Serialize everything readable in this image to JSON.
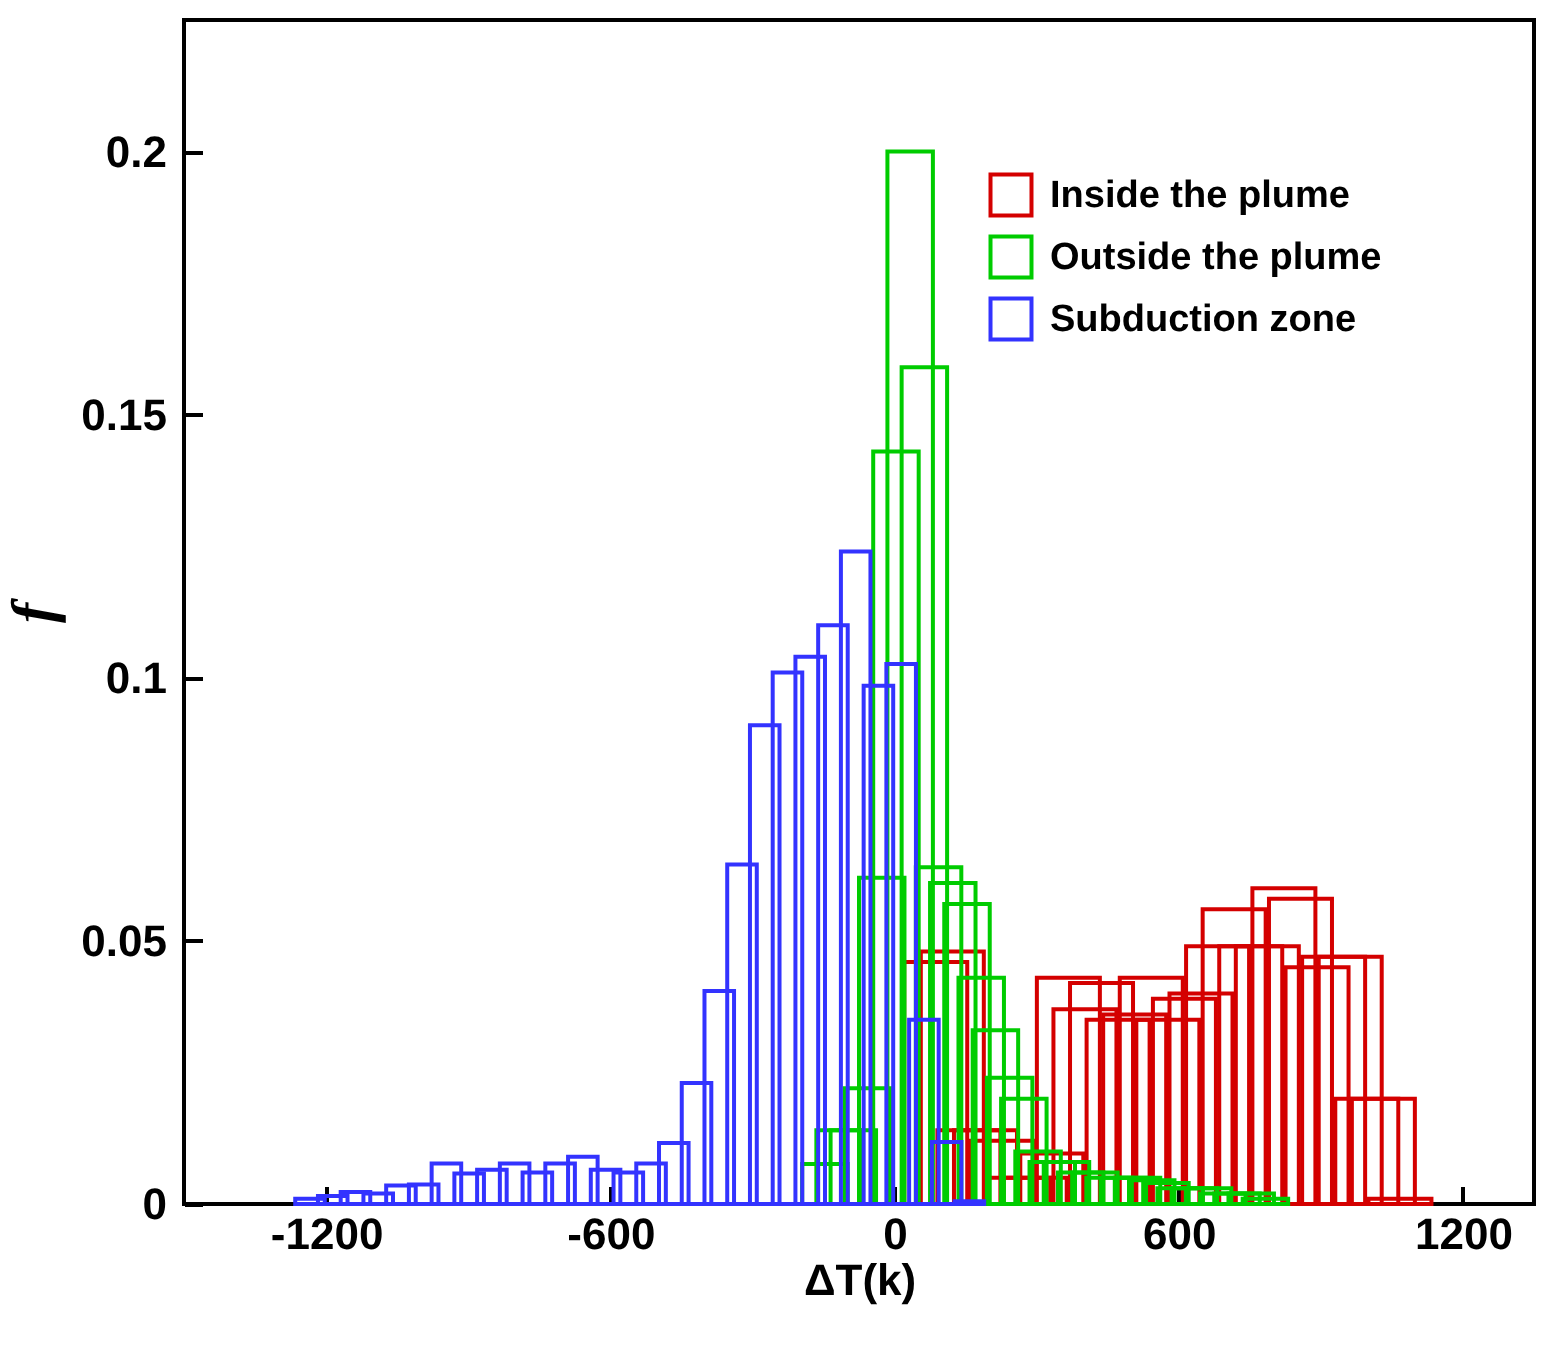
{
  "chart_data": {
    "type": "bar",
    "xlabel": "ΔT(k)",
    "ylabel": "f",
    "xlim": [
      -1500,
      1350
    ],
    "ylim": [
      0,
      0.225
    ],
    "xticks": [
      -1200,
      -600,
      0,
      600,
      1200
    ],
    "yticks": [
      0,
      0.05,
      0.1,
      0.15,
      0.2
    ],
    "legend": "top right",
    "series": [
      {
        "name": "Inside the plume",
        "color": "#d40000",
        "x": [
          87,
          122,
          157,
          192,
          227,
          262,
          297,
          332,
          367,
          402,
          437,
          472,
          507,
          542,
          577,
          612,
          647,
          682,
          717,
          752,
          787,
          822,
          857,
          892,
          927,
          962,
          997,
          1032,
          1067
        ],
        "values": [
          0.046,
          0.048,
          0.014,
          0.014,
          0.012,
          0.005,
          0.005,
          0.0096,
          0.043,
          0.037,
          0.042,
          0.035,
          0.036,
          0.043,
          0.035,
          0.039,
          0.04,
          0.049,
          0.056,
          0.049,
          0.049,
          0.06,
          0.058,
          0.045,
          0.047,
          0.047,
          0.02,
          0.02,
          0.001
        ]
      },
      {
        "name": "Outside the plume",
        "color": "#00cc00",
        "x": [
          -147,
          -117,
          -87,
          -57,
          -27,
          3,
          33,
          63,
          93,
          123,
          153,
          183,
          213,
          243,
          273,
          303,
          333,
          363,
          393,
          423,
          453,
          483,
          513,
          543,
          573,
          603,
          633,
          663,
          693,
          723,
          753,
          783
        ],
        "values": [
          0.0076,
          0.014,
          0.014,
          0.022,
          0.062,
          0.143,
          0.2,
          0.159,
          0.064,
          0.061,
          0.057,
          0.043,
          0.033,
          0.024,
          0.02,
          0.01,
          0.008,
          0.008,
          0.006,
          0.006,
          0.005,
          0.005,
          0.005,
          0.0045,
          0.004,
          0.003,
          0.003,
          0.003,
          0.002,
          0.002,
          0.002,
          0.001
        ]
      },
      {
        "name": "Subduction zone",
        "color": "#3333ff",
        "x": [
          -1234,
          -1186,
          -1138,
          -1090,
          -1042,
          -994,
          -946,
          -898,
          -850,
          -802,
          -754,
          -706,
          -658,
          -610,
          -562,
          -514,
          -466,
          -418,
          -370,
          -322,
          -274,
          -226,
          -178,
          -130,
          -82,
          -34,
          14,
          62,
          110,
          158
        ],
        "values": [
          0.001,
          0.0015,
          0.0023,
          0.002,
          0.0035,
          0.0037,
          0.0077,
          0.0058,
          0.0065,
          0.0077,
          0.006,
          0.0077,
          0.009,
          0.0065,
          0.006,
          0.0077,
          0.0116,
          0.023,
          0.0405,
          0.0645,
          0.091,
          0.101,
          0.104,
          0.11,
          0.124,
          0.0985,
          0.1026,
          0.035,
          0.0118,
          0.0005
        ]
      }
    ]
  }
}
